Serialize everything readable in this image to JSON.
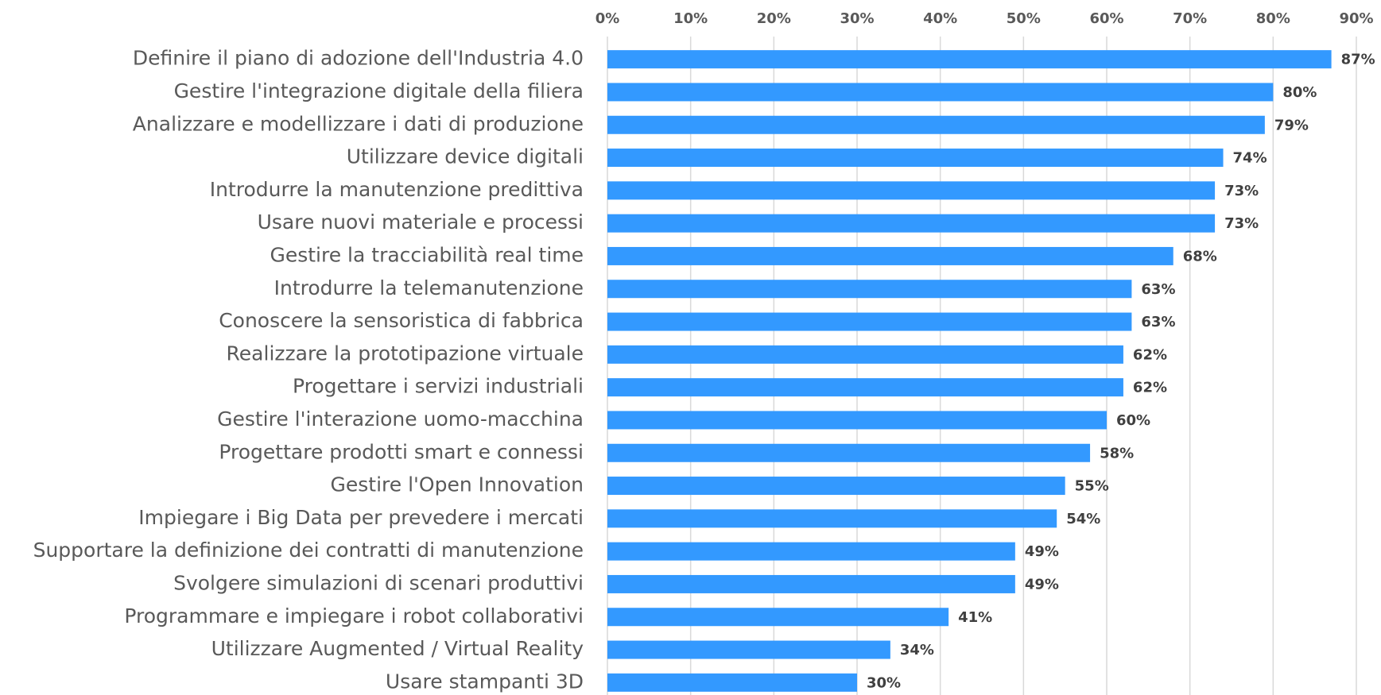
{
  "chart_data": {
    "type": "bar",
    "orientation": "horizontal",
    "color": "#3399ff",
    "grid": true,
    "categories": [
      "Definire il piano di adozione dell'Industria 4.0",
      "Gestire l'integrazione digitale della filiera",
      "Analizzare e modellizzare i dati di produzione",
      "Utilizzare device digitali",
      "Introdurre la manutenzione predittiva",
      "Usare nuovi materiale e processi",
      "Gestire la tracciabilità real time",
      "Introdurre la telemanutenzione",
      "Conoscere la sensoristica di fabbrica",
      "Realizzare la prototipazione virtuale",
      "Progettare i servizi industriali",
      "Gestire l'interazione uomo-macchina",
      "Progettare prodotti smart e connessi",
      "Gestire l'Open Innovation",
      "Impiegare i Big Data per prevedere i mercati",
      "Supportare la definizione dei contratti di manutenzione",
      "Svolgere simulazioni di scenari produttivi",
      "Programmare e impiegare i robot collaborativi",
      "Utilizzare Augmented / Virtual Reality",
      "Usare stampanti 3D"
    ],
    "values": [
      87,
      80,
      79,
      74,
      73,
      73,
      68,
      63,
      63,
      62,
      62,
      60,
      58,
      55,
      54,
      49,
      49,
      41,
      34,
      30
    ],
    "value_labels": [
      "87%",
      "80%",
      "79%",
      "74%",
      "73%",
      "73%",
      "68%",
      "63%",
      "63%",
      "62%",
      "62%",
      "60%",
      "58%",
      "55%",
      "54%",
      "49%",
      "49%",
      "41%",
      "34%",
      "30%"
    ],
    "xlim": [
      0,
      90
    ],
    "xticks": [
      {
        "value": 0,
        "label": "0%"
      },
      {
        "value": 10,
        "label": "10%"
      },
      {
        "value": 20,
        "label": "20%"
      },
      {
        "value": 30,
        "label": "30%"
      },
      {
        "value": 40,
        "label": "40%"
      },
      {
        "value": 50,
        "label": "50%"
      },
      {
        "value": 60,
        "label": "60%"
      },
      {
        "value": 70,
        "label": "70%"
      },
      {
        "value": 80,
        "label": "80%"
      },
      {
        "value": 90,
        "label": "90%"
      }
    ]
  }
}
